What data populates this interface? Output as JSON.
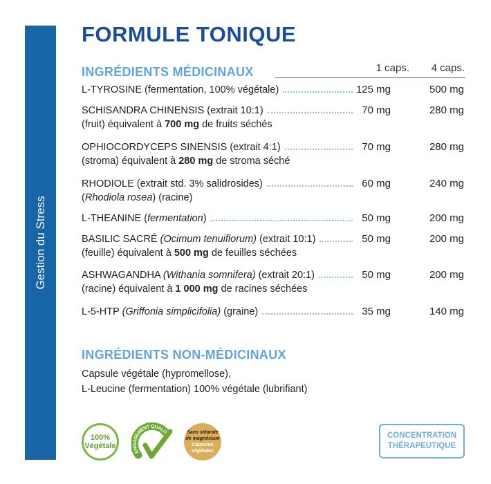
{
  "sidebar": {
    "label": "Gestion du Stress"
  },
  "title": "FORMULE TONIQUE",
  "medicinal": {
    "heading": "INGRÉDIENTS MÉDICINAUX",
    "col1": "1 caps.",
    "col2": "4 caps.",
    "rows": [
      {
        "line1": "L-TYROSINE (fermentation, 100% végétale)",
        "v1": "125 mg",
        "v2": "500 mg"
      },
      {
        "line1": "SCHISANDRA CHINENSIS (extrait 10:1)",
        "line2a": "(fruit) équivalent à ",
        "line2b": "700 mg",
        "line2c": " de fruits séchés",
        "v1": "70 mg",
        "v2": "280 mg"
      },
      {
        "line1": "OPHIOCORDYCEPS SINENSIS (extrait 4:1)",
        "line2a": "(stroma) équivalent à ",
        "line2b": "280 mg",
        "line2c": " de stroma séché",
        "v1": "70 mg",
        "v2": "280 mg"
      },
      {
        "line1": "RHODIOLE (extrait std. 3% salidrosides)",
        "line2a": "(",
        "line2i": "Rhodiola rosea",
        "line2c": ") (racine)",
        "v1": "60 mg",
        "v2": "240 mg"
      },
      {
        "line1a": "L-THEANINE (",
        "line1i": "fermentation",
        "line1c": ")",
        "v1": "50 mg",
        "v2": "200 mg"
      },
      {
        "line1a": "BASILIC SACRÉ ",
        "line1i": "(Ocimum tenuiflorum)",
        "line1c": " (extrait 10:1)",
        "line2a": "(feuille) équivalent à ",
        "line2b": "500 mg",
        "line2c": " de feuilles séchées",
        "v1": "50 mg",
        "v2": "200 mg"
      },
      {
        "line1a": "ASHWAGANDHA ",
        "line1i": "(Withania somnifera)",
        "line1c": " (extrait 20:1)",
        "line2a": "(racine) équivalent à ",
        "line2b": "1 000 mg",
        "line2c": " de racines séchées",
        "v1": "50 mg",
        "v2": "200 mg"
      },
      {
        "line1a": "L-5-HTP ",
        "line1i": "(Griffonia simplicifolia)",
        "line1c": " (graine)",
        "v1": "35 mg",
        "v2": "140 mg"
      }
    ]
  },
  "nonmedicinal": {
    "heading": "INGRÉDIENTS NON-MÉDICINAUX",
    "line1": "Capsule végétale (hypromellose),",
    "line2": "L-Leucine (fermentation) 100% végétale (lubrifiant)"
  },
  "badges": {
    "vegetale": "100% Végétale",
    "qualite": "ENGAGEMENT QUALITÉ",
    "stearate1": "Sans stéarate de magnésium",
    "stearate2": "Capsules végétales"
  },
  "concentration": {
    "line1": "CONCENTRATION",
    "line2": "THÉRAPEUTIQUE"
  },
  "colors": {
    "sidebar": "#1764a6",
    "title": "#1a4e9b",
    "accent": "#5fa6de"
  }
}
